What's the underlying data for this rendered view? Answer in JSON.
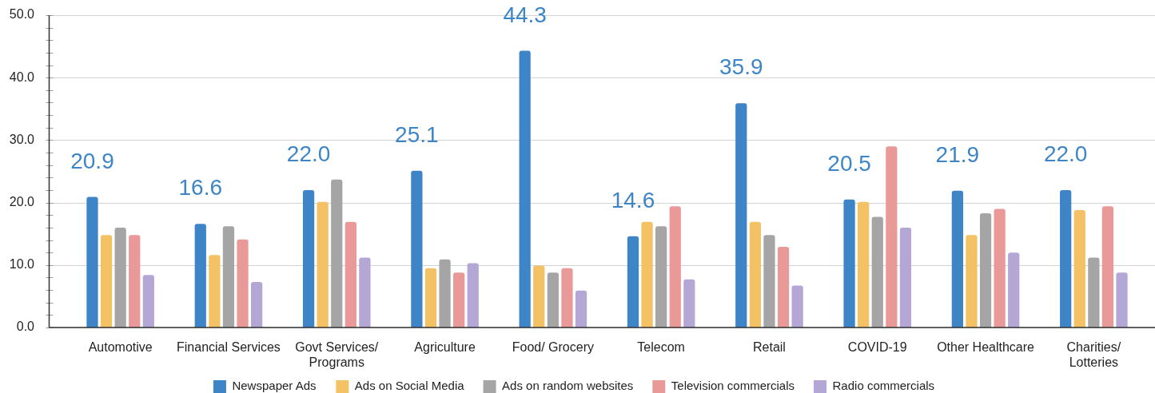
{
  "chart_data": {
    "type": "bar",
    "categories": [
      "Automotive",
      "Financial Services",
      "Govt Services/\nPrograms",
      "Agriculture",
      "Food/ Grocery",
      "Telecom",
      "Retail",
      "COVID-19",
      "Other Healthcare",
      "Charities/\nLotteries"
    ],
    "series": [
      {
        "name": "Newspaper Ads",
        "color": "#3d85c6",
        "values": [
          20.9,
          16.6,
          22.0,
          25.1,
          44.3,
          14.6,
          35.9,
          20.5,
          21.9,
          22.0
        ],
        "value_labels": [
          "20.9",
          "16.6",
          "22.0",
          "25.1",
          "44.3",
          "14.6",
          "35.9",
          "20.5",
          "21.9",
          "22.0"
        ]
      },
      {
        "name": "Ads on Social Media",
        "color": "#f2c264",
        "values": [
          14.8,
          11.6,
          20.1,
          9.5,
          9.9,
          16.9,
          16.9,
          20.1,
          14.8,
          18.8
        ]
      },
      {
        "name": "Ads on random websites",
        "color": "#a5a5a5",
        "values": [
          16.0,
          16.2,
          23.7,
          10.9,
          8.8,
          16.2,
          14.8,
          17.7,
          18.3,
          11.2
        ]
      },
      {
        "name": "Television commercials",
        "color": "#ea9999",
        "values": [
          14.8,
          14.1,
          16.9,
          8.8,
          9.5,
          19.4,
          12.9,
          29.0,
          19.0,
          19.4
        ]
      },
      {
        "name": "Radio commercials",
        "color": "#b4a7d6",
        "values": [
          8.4,
          7.3,
          11.2,
          10.3,
          5.9,
          7.7,
          6.7,
          16.0,
          12.0,
          8.8
        ]
      }
    ],
    "ylim": [
      0,
      50
    ],
    "yticks": [
      {
        "value": 0,
        "label": "0.0"
      },
      {
        "value": 2,
        "label": null
      },
      {
        "value": 4,
        "label": null
      },
      {
        "value": 6,
        "label": null
      },
      {
        "value": 8,
        "label": null
      },
      {
        "value": 10,
        "label": "10.0"
      },
      {
        "value": 12,
        "label": null
      },
      {
        "value": 14,
        "label": null
      },
      {
        "value": 16,
        "label": null
      },
      {
        "value": 18,
        "label": null
      },
      {
        "value": 20,
        "label": "20.0"
      },
      {
        "value": 22,
        "label": null
      },
      {
        "value": 24,
        "label": null
      },
      {
        "value": 26,
        "label": null
      },
      {
        "value": 28,
        "label": null
      },
      {
        "value": 30,
        "label": "30.0"
      },
      {
        "value": 32,
        "label": null
      },
      {
        "value": 34,
        "label": null
      },
      {
        "value": 36,
        "label": null
      },
      {
        "value": 38,
        "label": null
      },
      {
        "value": 40,
        "label": "40.0"
      },
      {
        "value": 42,
        "label": null
      },
      {
        "value": 44,
        "label": null
      },
      {
        "value": 46,
        "label": null
      },
      {
        "value": 48,
        "label": null
      },
      {
        "value": 50,
        "label": "50.0"
      }
    ],
    "grid": "y",
    "legend": "bottom"
  }
}
